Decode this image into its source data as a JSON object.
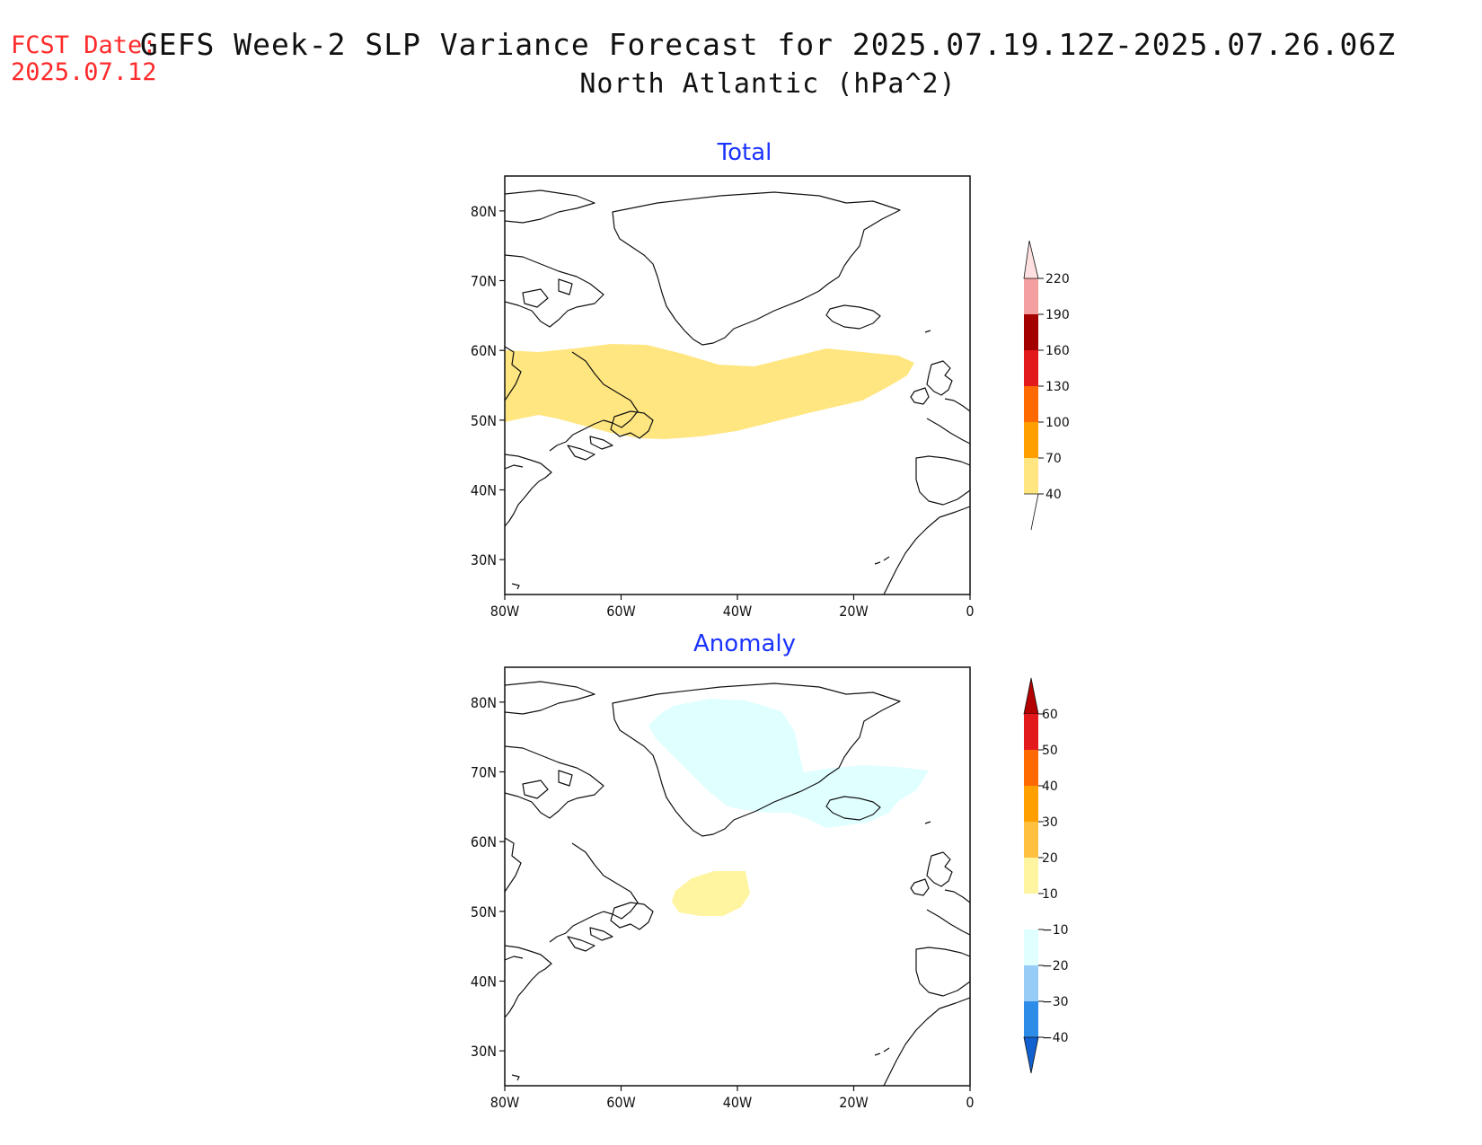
{
  "header": {
    "fcst_label": "FCST Date:",
    "fcst_date": "2025.07.12",
    "title_line1": "GEFS Week-2 SLP Variance Forecast for 2025.07.19.12Z-2025.07.26.06Z",
    "title_line2": "North Atlantic (hPa^2)"
  },
  "map_extent": {
    "lon": [
      -80,
      0
    ],
    "lat": [
      25,
      85
    ]
  },
  "panels": [
    {
      "id": "total",
      "title": "Total",
      "lat_ticks": [
        "30N",
        "40N",
        "50N",
        "60N",
        "70N",
        "80N"
      ],
      "lon_ticks": [
        "80W",
        "60W",
        "40W",
        "20W",
        "0"
      ],
      "colorbar": {
        "labels": [
          "40",
          "70",
          "100",
          "130",
          "160",
          "190",
          "220"
        ],
        "colors": [
          "#ffe680",
          "#ffa000",
          "#ff6a00",
          "#e31a1c",
          "#a50000",
          "#f4a0a0",
          "#ffe0e0"
        ]
      },
      "shaded_regions": [
        {
          "level": "40-70",
          "color": "#ffe680"
        }
      ]
    },
    {
      "id": "anomaly",
      "title": "Anomaly",
      "lat_ticks": [
        "30N",
        "40N",
        "50N",
        "60N",
        "70N",
        "80N"
      ],
      "lon_ticks": [
        "80W",
        "60W",
        "40W",
        "20W",
        "0"
      ],
      "colorbar": {
        "labels": [
          "60",
          "50",
          "40",
          "30",
          "20",
          "10",
          "−10",
          "−20",
          "−30",
          "−40"
        ],
        "colors": [
          "#b30000",
          "#e31a1c",
          "#ff6a00",
          "#ffa000",
          "#ffc040",
          "#fff5a0",
          "#ffffff",
          "#e0ffff",
          "#96ccf5",
          "#2d8ce8",
          "#1060d0"
        ]
      },
      "shaded_regions": [
        {
          "level": "-20 to -10",
          "color": "#e0ffff"
        },
        {
          "level": "10-20",
          "color": "#fff5a0"
        }
      ]
    }
  ]
}
